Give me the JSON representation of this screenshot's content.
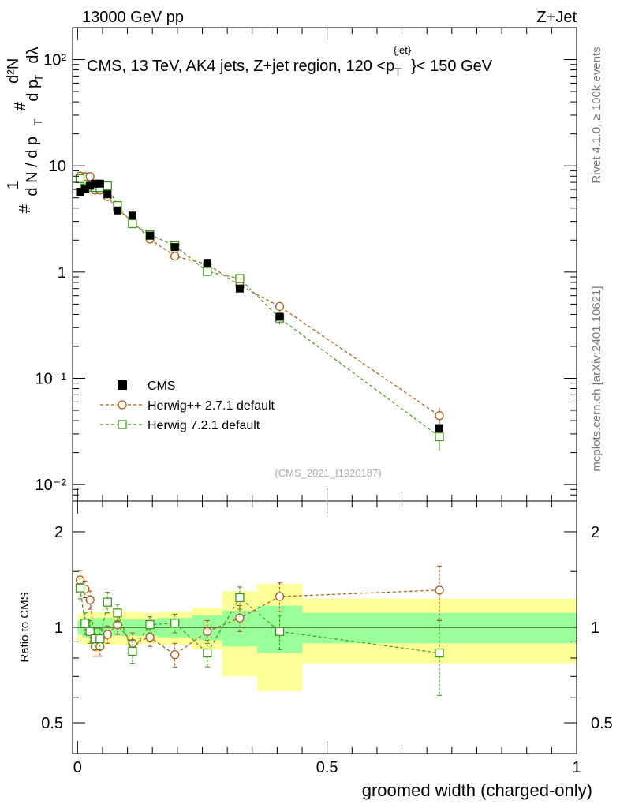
{
  "header": {
    "left": "13000 GeV pp",
    "right": "Z+Jet"
  },
  "side_labels": {
    "rivet": "Rivet 4.1.0, ≥ 100k events",
    "mcplots": "mcplots.cern.ch [arXiv:2401.10621]"
  },
  "top_panel": {
    "title_main": "CMS, 13 TeV, AK4 jets, Z+jet region, 120 <p",
    "title_sub": "T",
    "title_sup": "{jet}",
    "title_end": "}< 150 GeV",
    "ylabel": "1/N dN/dpT d²N/dpT dλ",
    "ylabel_prefix": "#",
    "ylabel_one": "1",
    "ylabel_den": "d N / d p",
    "ylabel_den_sub": "T",
    "ylabel_num2": "d²N",
    "ylabel_den2": "d p",
    "ylabel_den2_sub": "T",
    "ylabel_den2_tail": "dλ",
    "ylabel_hash2": "#",
    "yticks": [
      {
        "value": 0.01,
        "label": "10⁻²"
      },
      {
        "value": 0.1,
        "label": "10⁻¹"
      },
      {
        "value": 1,
        "label": "1"
      },
      {
        "value": 10,
        "label": "10"
      },
      {
        "value": 100,
        "label": "10²"
      }
    ],
    "watermark": "(CMS_2021_I1920187)"
  },
  "bottom_panel": {
    "ylabel": "Ratio to CMS",
    "yticks": [
      {
        "value": 0.5,
        "label": "0.5"
      },
      {
        "value": 1,
        "label": "1"
      },
      {
        "value": 2,
        "label": "2"
      }
    ],
    "xticks": [
      {
        "value": 0,
        "label": "0"
      },
      {
        "value": 0.5,
        "label": "0.5"
      },
      {
        "value": 1,
        "label": "1"
      }
    ],
    "xlabel": "groomed width (charged-only)"
  },
  "legend": [
    {
      "name": "CMS",
      "marker": "filled-square",
      "color": "#000000"
    },
    {
      "name": "Herwig++ 2.7.1 default",
      "marker": "open-circle",
      "color": "#b05a10"
    },
    {
      "name": "Herwig 7.2.1 default",
      "marker": "open-square",
      "color": "#3f9b17"
    }
  ],
  "colors": {
    "band_inner": "#99ff99",
    "band_outer": "#ffff99",
    "herwigpp": "#b05a10",
    "herwig7": "#3f9b17",
    "data": "#000000"
  },
  "chart_data": {
    "type": "scatter",
    "title": "CMS, 13 TeV, AK4 jets, Z+jet region, 120 < pT jet < 150 GeV",
    "xlabel": "groomed width (charged-only)",
    "ylabel": "1/N dN/dpT d2N/dpT dlambda",
    "xlim": [
      -0.01,
      1.0
    ],
    "ylim_top": [
      0.007,
      200
    ],
    "yscale_top": "log",
    "ylim_ratio": [
      0.4,
      2.5
    ],
    "yscale_ratio": "log",
    "bins": [
      {
        "lo": 0.0,
        "hi": 0.01,
        "x": 0.005
      },
      {
        "lo": 0.01,
        "hi": 0.02,
        "x": 0.015
      },
      {
        "lo": 0.02,
        "hi": 0.03,
        "x": 0.025
      },
      {
        "lo": 0.03,
        "hi": 0.04,
        "x": 0.035
      },
      {
        "lo": 0.04,
        "hi": 0.05,
        "x": 0.045
      },
      {
        "lo": 0.05,
        "hi": 0.07,
        "x": 0.06
      },
      {
        "lo": 0.07,
        "hi": 0.09,
        "x": 0.08
      },
      {
        "lo": 0.09,
        "hi": 0.13,
        "x": 0.11
      },
      {
        "lo": 0.13,
        "hi": 0.16,
        "x": 0.145
      },
      {
        "lo": 0.16,
        "hi": 0.23,
        "x": 0.195
      },
      {
        "lo": 0.23,
        "hi": 0.29,
        "x": 0.26
      },
      {
        "lo": 0.29,
        "hi": 0.36,
        "x": 0.325
      },
      {
        "lo": 0.36,
        "hi": 0.45,
        "x": 0.405
      },
      {
        "lo": 0.45,
        "hi": 1.0,
        "x": 0.725
      }
    ],
    "cms": [
      5.7,
      6.0,
      6.5,
      6.8,
      6.8,
      5.4,
      3.8,
      3.4,
      2.2,
      1.72,
      1.22,
      0.7,
      0.38,
      0.034
    ],
    "band_inner": [
      0.05,
      0.07,
      0.07,
      0.07,
      0.07,
      0.07,
      0.06,
      0.06,
      0.06,
      0.07,
      0.09,
      0.13,
      0.17,
      0.11
    ],
    "band_outer": [
      0.1,
      0.12,
      0.12,
      0.12,
      0.12,
      0.12,
      0.12,
      0.12,
      0.11,
      0.12,
      0.15,
      0.3,
      0.37,
      0.23
    ],
    "series": [
      {
        "name": "Herwig++ 2.7.1 default",
        "ratio": [
          1.41,
          1.32,
          1.22,
          0.87,
          0.87,
          0.95,
          1.02,
          0.89,
          0.93,
          0.82,
          0.97,
          1.07,
          1.25,
          1.31
        ],
        "ratio_err": [
          0.1,
          0.08,
          0.08,
          0.06,
          0.06,
          0.06,
          0.07,
          0.07,
          0.06,
          0.07,
          0.08,
          0.1,
          0.13,
          0.25
        ]
      },
      {
        "name": "Herwig 7.2.1 default",
        "ratio": [
          1.33,
          1.03,
          0.97,
          0.92,
          0.92,
          1.2,
          1.11,
          0.84,
          1.02,
          1.03,
          0.83,
          1.24,
          0.97,
          0.83
        ],
        "ratio_err": [
          0.1,
          0.08,
          0.08,
          0.07,
          0.07,
          0.09,
          0.07,
          0.07,
          0.06,
          0.07,
          0.08,
          0.1,
          0.12,
          0.22
        ]
      }
    ]
  }
}
